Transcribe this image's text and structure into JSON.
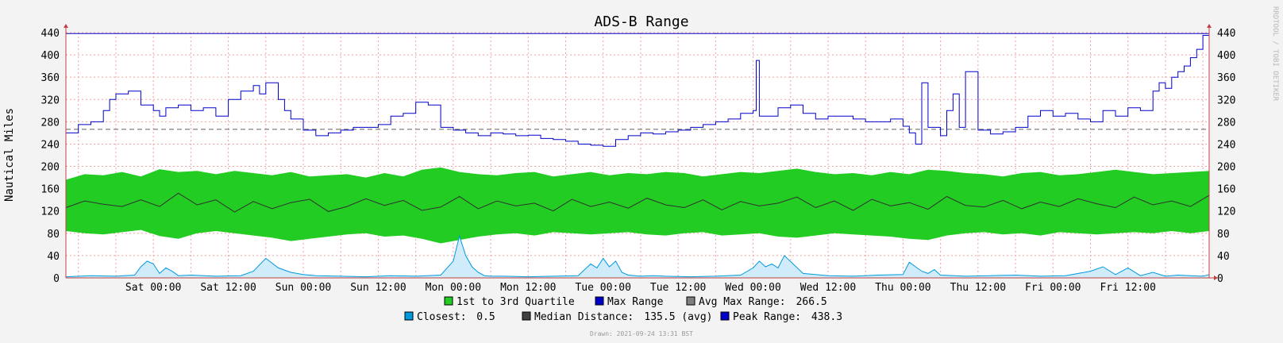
{
  "chart_data": {
    "type": "area",
    "title": "ADS-B Range",
    "ylabel": "Nautical Miles",
    "ylim": [
      0,
      440
    ],
    "yticks": [
      0,
      40,
      80,
      120,
      160,
      200,
      240,
      280,
      320,
      360,
      400,
      440
    ],
    "x_axis_span_hours": [
      0,
      163
    ],
    "xticks": [
      {
        "label": "Sat 00:00",
        "hour": 14
      },
      {
        "label": "Sat 12:00",
        "hour": 26
      },
      {
        "label": "Sun 00:00",
        "hour": 38
      },
      {
        "label": "Sun 12:00",
        "hour": 50
      },
      {
        "label": "Mon 00:00",
        "hour": 62
      },
      {
        "label": "Mon 12:00",
        "hour": 74
      },
      {
        "label": "Tue 00:00",
        "hour": 86
      },
      {
        "label": "Tue 12:00",
        "hour": 98
      },
      {
        "label": "Wed 00:00",
        "hour": 110
      },
      {
        "label": "Wed 12:00",
        "hour": 122
      },
      {
        "label": "Thu 00:00",
        "hour": 134
      },
      {
        "label": "Thu 12:00",
        "hour": 146
      },
      {
        "label": "Fri 00:00",
        "hour": 158
      },
      {
        "label": "Fri 12:00",
        "hour": 170
      }
    ],
    "grid": true,
    "avg_max_range": 266.5,
    "peak_range": 438.3,
    "series": [
      {
        "name": "Max Range",
        "color": "#0000cc",
        "x": [
          0,
          2,
          4,
          6,
          7,
          8,
          10,
          12,
          14,
          15,
          16,
          18,
          20,
          22,
          24,
          26,
          28,
          30,
          31,
          32,
          34,
          35,
          36,
          38,
          40,
          42,
          44,
          46,
          48,
          50,
          52,
          54,
          56,
          58,
          60,
          62,
          64,
          66,
          68,
          70,
          72,
          74,
          76,
          78,
          80,
          82,
          84,
          86,
          88,
          90,
          92,
          94,
          96,
          98,
          100,
          102,
          104,
          106,
          108,
          110,
          110.5,
          111,
          112,
          114,
          116,
          118,
          120,
          122,
          124,
          126,
          128,
          130,
          132,
          134,
          135,
          136,
          137,
          138,
          140,
          141,
          142,
          143,
          144,
          146,
          148,
          150,
          152,
          154,
          156,
          158,
          160,
          162,
          164,
          166,
          168,
          170,
          172,
          174,
          175,
          176,
          177,
          178,
          179,
          180,
          181,
          182,
          183
        ],
        "values": [
          260,
          275,
          280,
          300,
          320,
          330,
          335,
          310,
          300,
          290,
          305,
          310,
          300,
          305,
          290,
          320,
          335,
          345,
          330,
          350,
          320,
          300,
          285,
          265,
          255,
          260,
          265,
          270,
          270,
          275,
          290,
          295,
          315,
          310,
          270,
          265,
          260,
          255,
          260,
          258,
          255,
          256,
          250,
          248,
          245,
          240,
          238,
          236,
          248,
          255,
          260,
          258,
          262,
          265,
          270,
          275,
          280,
          285,
          295,
          300,
          390,
          290,
          290,
          305,
          310,
          295,
          285,
          290,
          290,
          285,
          280,
          280,
          285,
          272,
          260,
          240,
          350,
          270,
          255,
          300,
          330,
          270,
          370,
          265,
          258,
          262,
          270,
          290,
          300,
          290,
          295,
          285,
          280,
          300,
          290,
          305,
          300,
          335,
          350,
          340,
          360,
          370,
          380,
          395,
          410,
          435,
          438
        ]
      },
      {
        "name": "Median Distance",
        "color": "#303030",
        "x": [
          0,
          3,
          6,
          9,
          12,
          15,
          18,
          21,
          24,
          27,
          30,
          33,
          36,
          39,
          42,
          45,
          48,
          51,
          54,
          57,
          60,
          63,
          66,
          69,
          72,
          75,
          78,
          81,
          84,
          87,
          90,
          93,
          96,
          99,
          102,
          105,
          108,
          111,
          114,
          117,
          120,
          123,
          126,
          129,
          132,
          135,
          138,
          141,
          144,
          147,
          150,
          153,
          156,
          159,
          162,
          165,
          168,
          171,
          174,
          177,
          180,
          183
        ],
        "values": [
          126,
          138,
          132,
          128,
          140,
          128,
          152,
          131,
          140,
          118,
          137,
          124,
          135,
          141,
          119,
          128,
          142,
          130,
          139,
          121,
          127,
          146,
          124,
          138,
          129,
          134,
          120,
          141,
          128,
          136,
          125,
          143,
          131,
          126,
          140,
          122,
          137,
          129,
          134,
          145,
          126,
          138,
          121,
          141,
          129,
          135,
          123,
          146,
          130,
          127,
          139,
          124,
          136,
          128,
          142,
          133,
          126,
          145,
          131,
          138,
          128,
          148
        ]
      },
      {
        "name": "1st to 3rd Quartile",
        "color": "#22cc22",
        "x": [
          0,
          3,
          6,
          9,
          12,
          15,
          18,
          21,
          24,
          27,
          30,
          33,
          36,
          39,
          42,
          45,
          48,
          51,
          54,
          57,
          60,
          63,
          66,
          69,
          72,
          75,
          78,
          81,
          84,
          87,
          90,
          93,
          96,
          99,
          102,
          105,
          108,
          111,
          114,
          117,
          120,
          123,
          126,
          129,
          132,
          135,
          138,
          141,
          144,
          147,
          150,
          153,
          156,
          159,
          162,
          165,
          168,
          171,
          174,
          177,
          180,
          183
        ],
        "low": [
          84,
          80,
          78,
          82,
          86,
          75,
          70,
          80,
          84,
          80,
          76,
          72,
          66,
          70,
          74,
          78,
          80,
          74,
          76,
          70,
          62,
          68,
          74,
          78,
          80,
          76,
          82,
          80,
          78,
          80,
          82,
          78,
          76,
          80,
          82,
          76,
          78,
          80,
          74,
          72,
          76,
          80,
          78,
          76,
          74,
          70,
          68,
          76,
          80,
          82,
          78,
          80,
          76,
          82,
          80,
          78,
          80,
          82,
          80,
          84,
          80,
          84
        ],
        "high": [
          176,
          186,
          184,
          190,
          182,
          195,
          190,
          192,
          186,
          192,
          188,
          184,
          190,
          182,
          184,
          186,
          180,
          188,
          182,
          194,
          198,
          190,
          186,
          184,
          188,
          190,
          182,
          186,
          190,
          184,
          188,
          186,
          190,
          188,
          182,
          186,
          190,
          188,
          192,
          196,
          190,
          186,
          188,
          184,
          190,
          186,
          194,
          192,
          188,
          186,
          182,
          188,
          190,
          184,
          186,
          190,
          194,
          190,
          186,
          188,
          190,
          192
        ]
      },
      {
        "name": "Closest",
        "color": "#0099dd",
        "x": [
          0,
          4,
          8,
          11,
          12,
          13,
          14,
          15,
          16,
          17,
          18,
          20,
          24,
          28,
          30,
          32,
          34,
          36,
          38,
          40,
          44,
          48,
          52,
          56,
          60,
          62,
          63,
          64,
          65,
          66,
          67,
          68,
          70,
          74,
          78,
          82,
          84,
          85,
          86,
          87,
          88,
          89,
          90,
          92,
          94,
          96,
          100,
          104,
          108,
          110,
          111,
          112,
          113,
          114,
          115,
          118,
          122,
          126,
          130,
          134,
          135,
          136,
          137,
          138,
          139,
          140,
          144,
          148,
          152,
          156,
          160,
          164,
          166,
          168,
          170,
          172,
          174,
          176,
          178,
          180,
          182,
          183
        ],
        "values": [
          2,
          4,
          3,
          5,
          20,
          30,
          25,
          8,
          18,
          12,
          4,
          5,
          3,
          4,
          12,
          35,
          18,
          10,
          6,
          4,
          3,
          2,
          4,
          3,
          5,
          30,
          75,
          40,
          20,
          10,
          4,
          3,
          3,
          2,
          3,
          4,
          25,
          18,
          35,
          20,
          30,
          10,
          5,
          3,
          4,
          3,
          2,
          3,
          5,
          18,
          30,
          20,
          25,
          18,
          40,
          8,
          4,
          3,
          5,
          6,
          28,
          20,
          12,
          8,
          15,
          5,
          3,
          4,
          5,
          3,
          4,
          12,
          20,
          6,
          18,
          4,
          10,
          3,
          5,
          4,
          3,
          6
        ]
      }
    ],
    "legend": [
      {
        "label": "1st to 3rd Quartile",
        "color": "#22cc22",
        "text": ""
      },
      {
        "label": "Max Range",
        "color": "#0000cc",
        "text": ""
      },
      {
        "label": "Avg Max Range:",
        "color": "#808080",
        "text": "266.5"
      },
      {
        "label": "Closest:",
        "color": "#0099dd",
        "text": "0.5"
      },
      {
        "label": "Median Distance:",
        "color": "#404040",
        "text": "135.5 (avg)"
      },
      {
        "label": "Peak Range:",
        "color": "#0000cc",
        "text": "438.3"
      }
    ]
  },
  "watermark": "RRDTOOL / TOBI OETIKER",
  "footer": "Drawn: 2021-09-24 13:31 BST"
}
